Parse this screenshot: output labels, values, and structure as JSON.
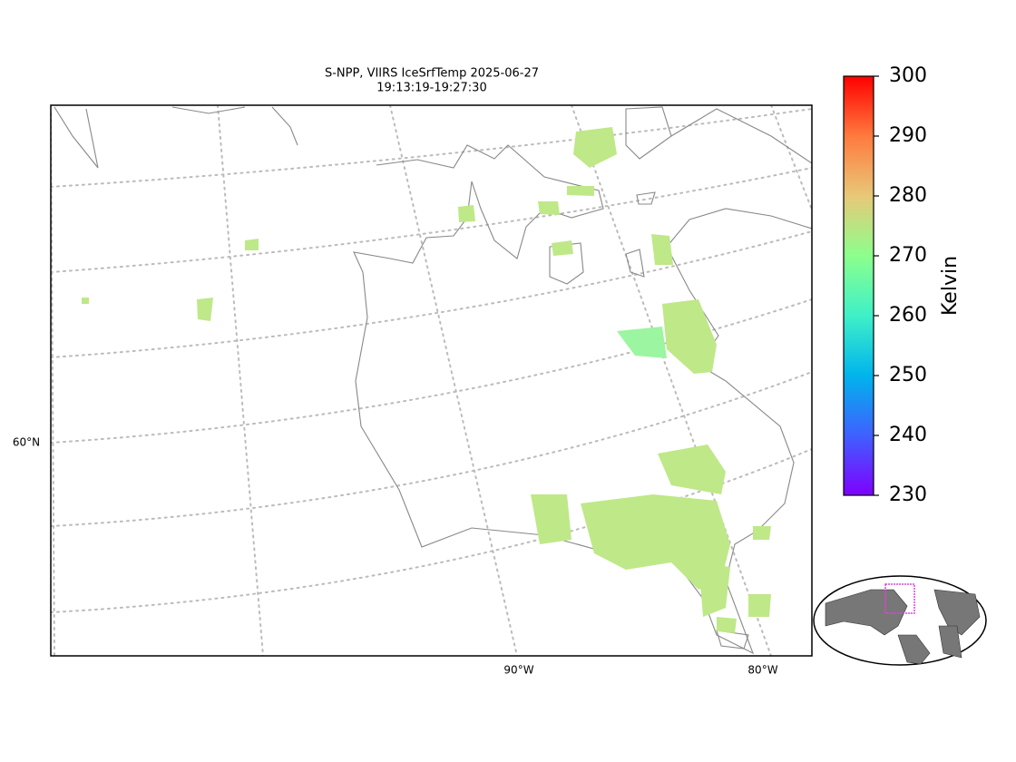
{
  "title": [
    "S-NPP, VIIRS IceSrfTemp 2025-06-27",
    "19:13:19-19:27:30"
  ],
  "map": {
    "lat_labels": [
      "60°N"
    ],
    "lon_labels": [
      "90°W",
      "80°W"
    ]
  },
  "colorbar": {
    "label": "Kelvin",
    "lim": [
      230,
      300
    ],
    "ticks": [
      230,
      240,
      250,
      260,
      270,
      280,
      290,
      300
    ],
    "colors": [
      "#7f00ff",
      "#3f60ff",
      "#00b4ec",
      "#3ff0c8",
      "#8cff8c",
      "#e8c878",
      "#ff7a3e",
      "#ff0000"
    ]
  }
}
